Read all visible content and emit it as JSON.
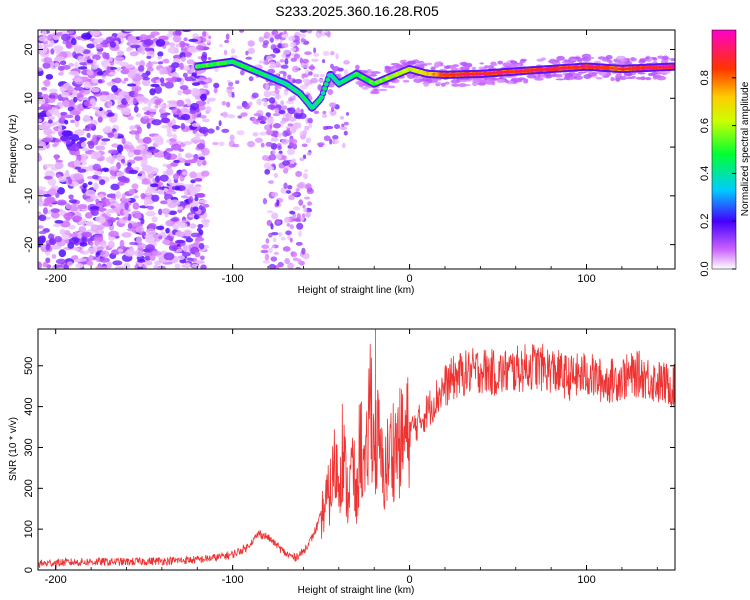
{
  "title": "S233.2025.360.16.28.R05",
  "colors": {
    "snr_line": "#ee3333",
    "axis": "#000000"
  },
  "chart_data": [
    {
      "type": "heatmap",
      "name": "spectrogram",
      "xlabel": "Height of straight line (km)",
      "ylabel": "Frequency (Hz)",
      "xlim": [
        -210,
        150
      ],
      "ylim": [
        -25,
        24
      ],
      "xticks": [
        -200,
        -100,
        0,
        100
      ],
      "yticks": [
        20,
        10,
        0,
        -10,
        -20
      ],
      "colorbar": {
        "label": "Normalized spectral amplitude",
        "range": [
          0,
          1
        ],
        "ticks": [
          0.0,
          0.2,
          0.4,
          0.6,
          0.8
        ],
        "tick_labels": [
          "0.0",
          "0.2",
          "0.4",
          "0.6",
          "0.8"
        ]
      },
      "ridge": {
        "description": "dominant frequency track (Hz) vs height (km)",
        "x": [
          -120,
          -110,
          -100,
          -90,
          -80,
          -70,
          -62,
          -55,
          -50,
          -45,
          -40,
          -35,
          -30,
          -25,
          -20,
          -10,
          0,
          10,
          20,
          40,
          60,
          80,
          100,
          120,
          150
        ],
        "y": [
          16.5,
          17,
          17.5,
          16,
          14.5,
          13,
          11,
          8,
          10,
          15,
          13,
          14,
          15,
          14,
          13,
          14.5,
          16,
          15,
          14.8,
          15,
          15.5,
          16,
          16.5,
          16,
          16.5
        ],
        "amplitude": [
          0.4,
          0.45,
          0.35,
          0.4,
          0.3,
          0.3,
          0.35,
          0.3,
          0.3,
          0.3,
          0.3,
          0.3,
          0.35,
          0.4,
          0.45,
          0.55,
          0.6,
          0.7,
          0.85,
          0.9,
          0.9,
          0.9,
          0.9,
          0.85,
          0.95
        ]
      }
    },
    {
      "type": "line",
      "name": "snr",
      "xlabel": "Height of straight line (km)",
      "ylabel": "SNR (10 * v/v)",
      "xlim": [
        -210,
        150
      ],
      "ylim": [
        0,
        590
      ],
      "xticks": [
        -200,
        -100,
        0,
        100
      ],
      "yticks": [
        0,
        100,
        200,
        300,
        400,
        500
      ],
      "series": [
        {
          "name": "SNR",
          "x": [
            -210,
            -200,
            -180,
            -160,
            -140,
            -120,
            -110,
            -100,
            -92,
            -85,
            -80,
            -75,
            -70,
            -65,
            -60,
            -55,
            -50,
            -45,
            -42,
            -40,
            -38,
            -35,
            -32,
            -30,
            -28,
            -25,
            -22,
            -20,
            -18,
            -15,
            -10,
            -5,
            0,
            5,
            10,
            15,
            20,
            25,
            30,
            40,
            50,
            60,
            70,
            80,
            90,
            100,
            110,
            120,
            130,
            140,
            150
          ],
          "y": [
            15,
            18,
            20,
            20,
            22,
            25,
            30,
            38,
            55,
            90,
            80,
            60,
            40,
            30,
            45,
            80,
            130,
            190,
            260,
            220,
            300,
            180,
            260,
            150,
            330,
            210,
            450,
            280,
            320,
            230,
            300,
            310,
            340,
            360,
            390,
            420,
            450,
            470,
            480,
            490,
            480,
            490,
            500,
            490,
            470,
            480,
            460,
            470,
            480,
            460,
            450
          ]
        }
      ]
    }
  ]
}
